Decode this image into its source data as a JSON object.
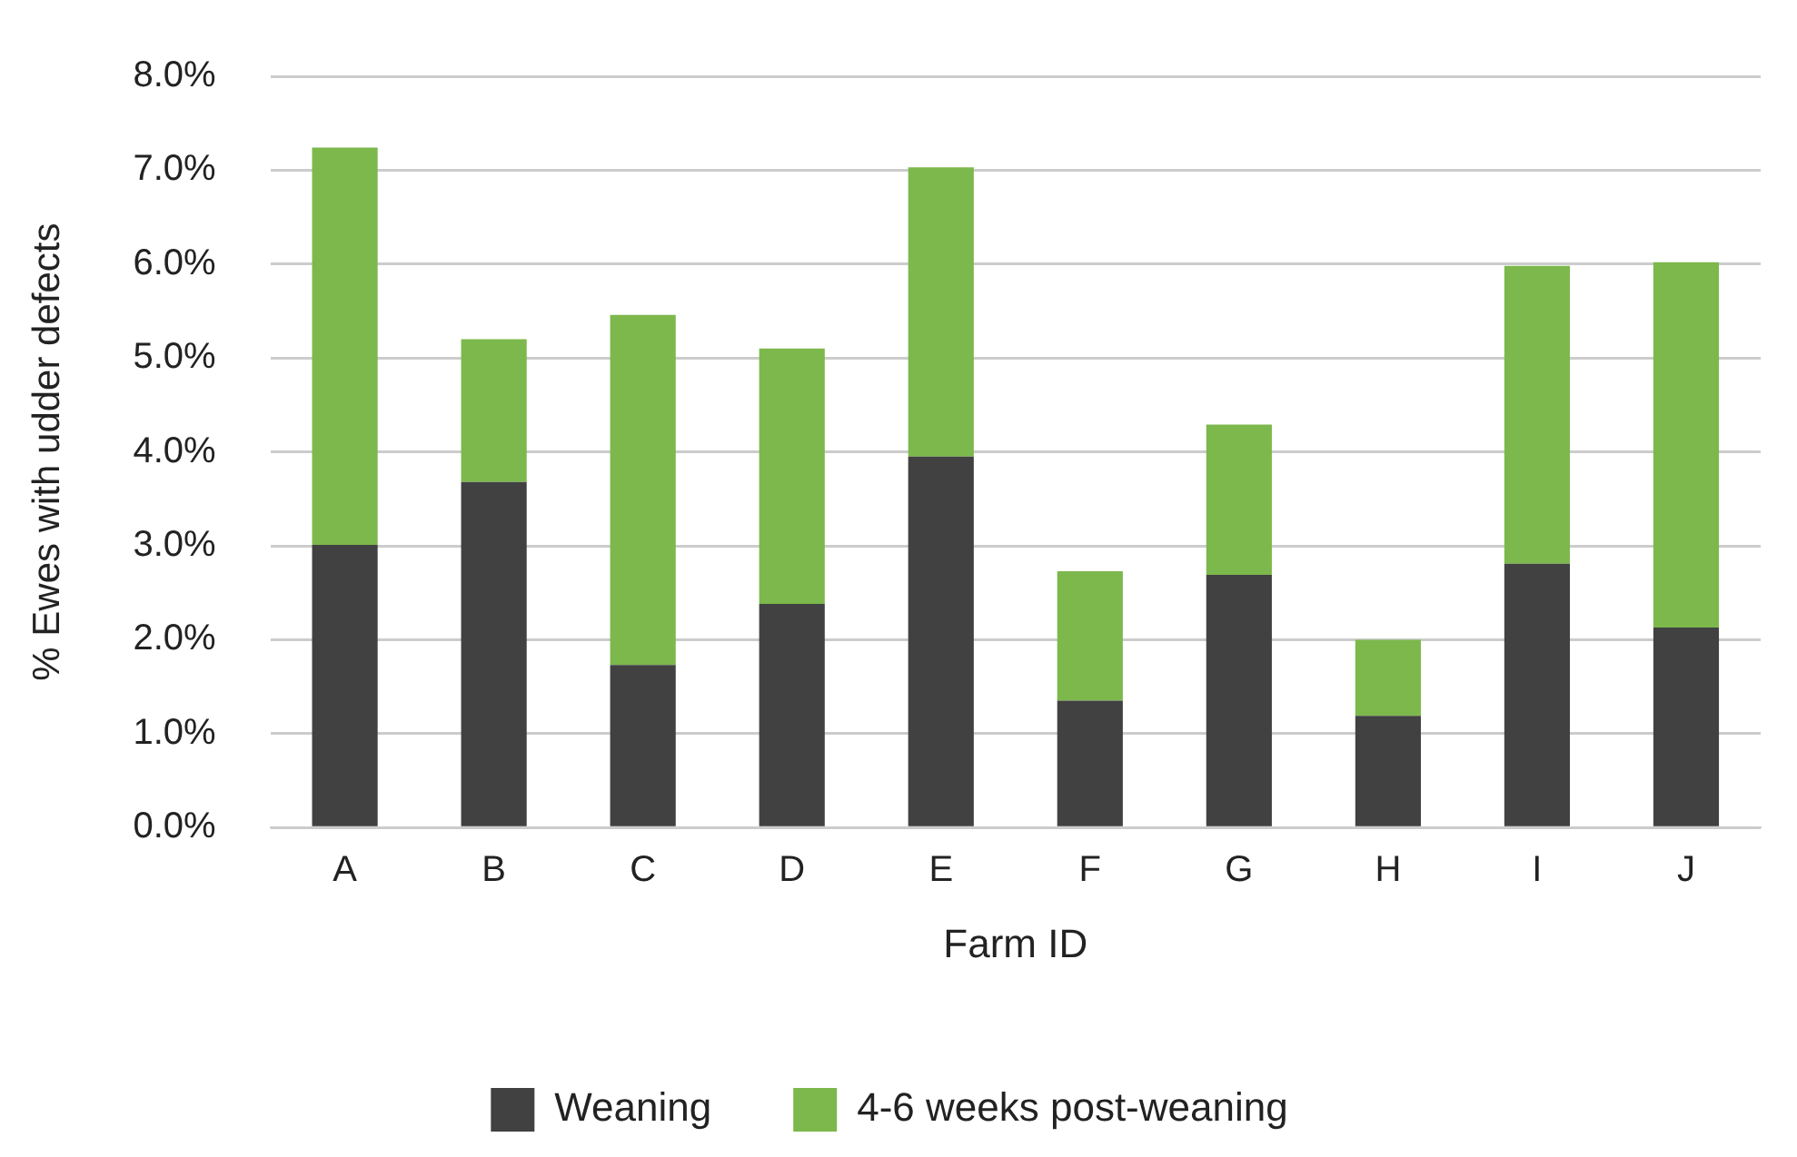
{
  "chart_data": {
    "type": "bar",
    "stacked": true,
    "xlabel": "Farm ID",
    "ylabel": "% Ewes with udder defects",
    "categories": [
      "A",
      "B",
      "C",
      "D",
      "E",
      "F",
      "G",
      "H",
      "I",
      "J"
    ],
    "series": [
      {
        "name": "Weaning",
        "color": "#414142",
        "values": [
          3.01,
          3.68,
          1.73,
          2.38,
          3.95,
          1.35,
          2.69,
          1.19,
          2.81,
          2.13
        ]
      },
      {
        "name": "4-6 weeks post-weaning",
        "color": "#7cb84c",
        "values": [
          4.23,
          1.52,
          3.73,
          2.72,
          3.08,
          1.38,
          1.6,
          0.81,
          3.17,
          3.89
        ]
      }
    ],
    "ylim": [
      0,
      8
    ],
    "yticks": [
      {
        "value": 0,
        "label": "0.0%"
      },
      {
        "value": 1,
        "label": "1.0%"
      },
      {
        "value": 2,
        "label": "2.0%"
      },
      {
        "value": 3,
        "label": "3.0%"
      },
      {
        "value": 4,
        "label": "4.0%"
      },
      {
        "value": 5,
        "label": "5.0%"
      },
      {
        "value": 6,
        "label": "6.0%"
      },
      {
        "value": 7,
        "label": "7.0%"
      },
      {
        "value": 8,
        "label": "8.0%"
      }
    ],
    "grid": "y",
    "legend": "bottom"
  }
}
